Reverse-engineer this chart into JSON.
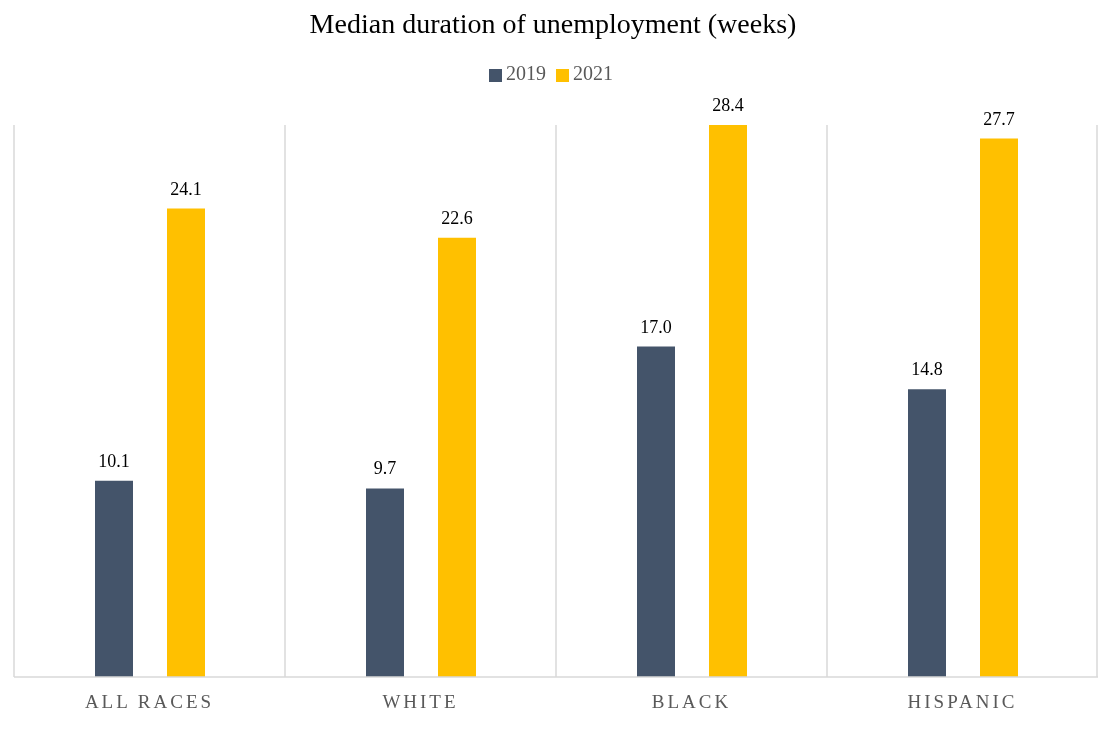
{
  "chart_data": {
    "type": "bar",
    "title": "Median duration of unemployment (weeks)",
    "categories": [
      "ALL RACES",
      "WHITE",
      "BLACK",
      "HISPANIC"
    ],
    "series": [
      {
        "name": "2019",
        "color": "#44546a",
        "values": [
          10.1,
          9.7,
          17.0,
          14.8
        ],
        "value_labels": [
          "10.1",
          "9.7",
          "17.0",
          "14.8"
        ]
      },
      {
        "name": "2021",
        "color": "#ffc000",
        "values": [
          24.1,
          22.6,
          28.4,
          27.7
        ],
        "value_labels": [
          "24.1",
          "22.6",
          "28.4",
          "27.7"
        ]
      }
    ],
    "grid": "x",
    "legend": "top"
  }
}
